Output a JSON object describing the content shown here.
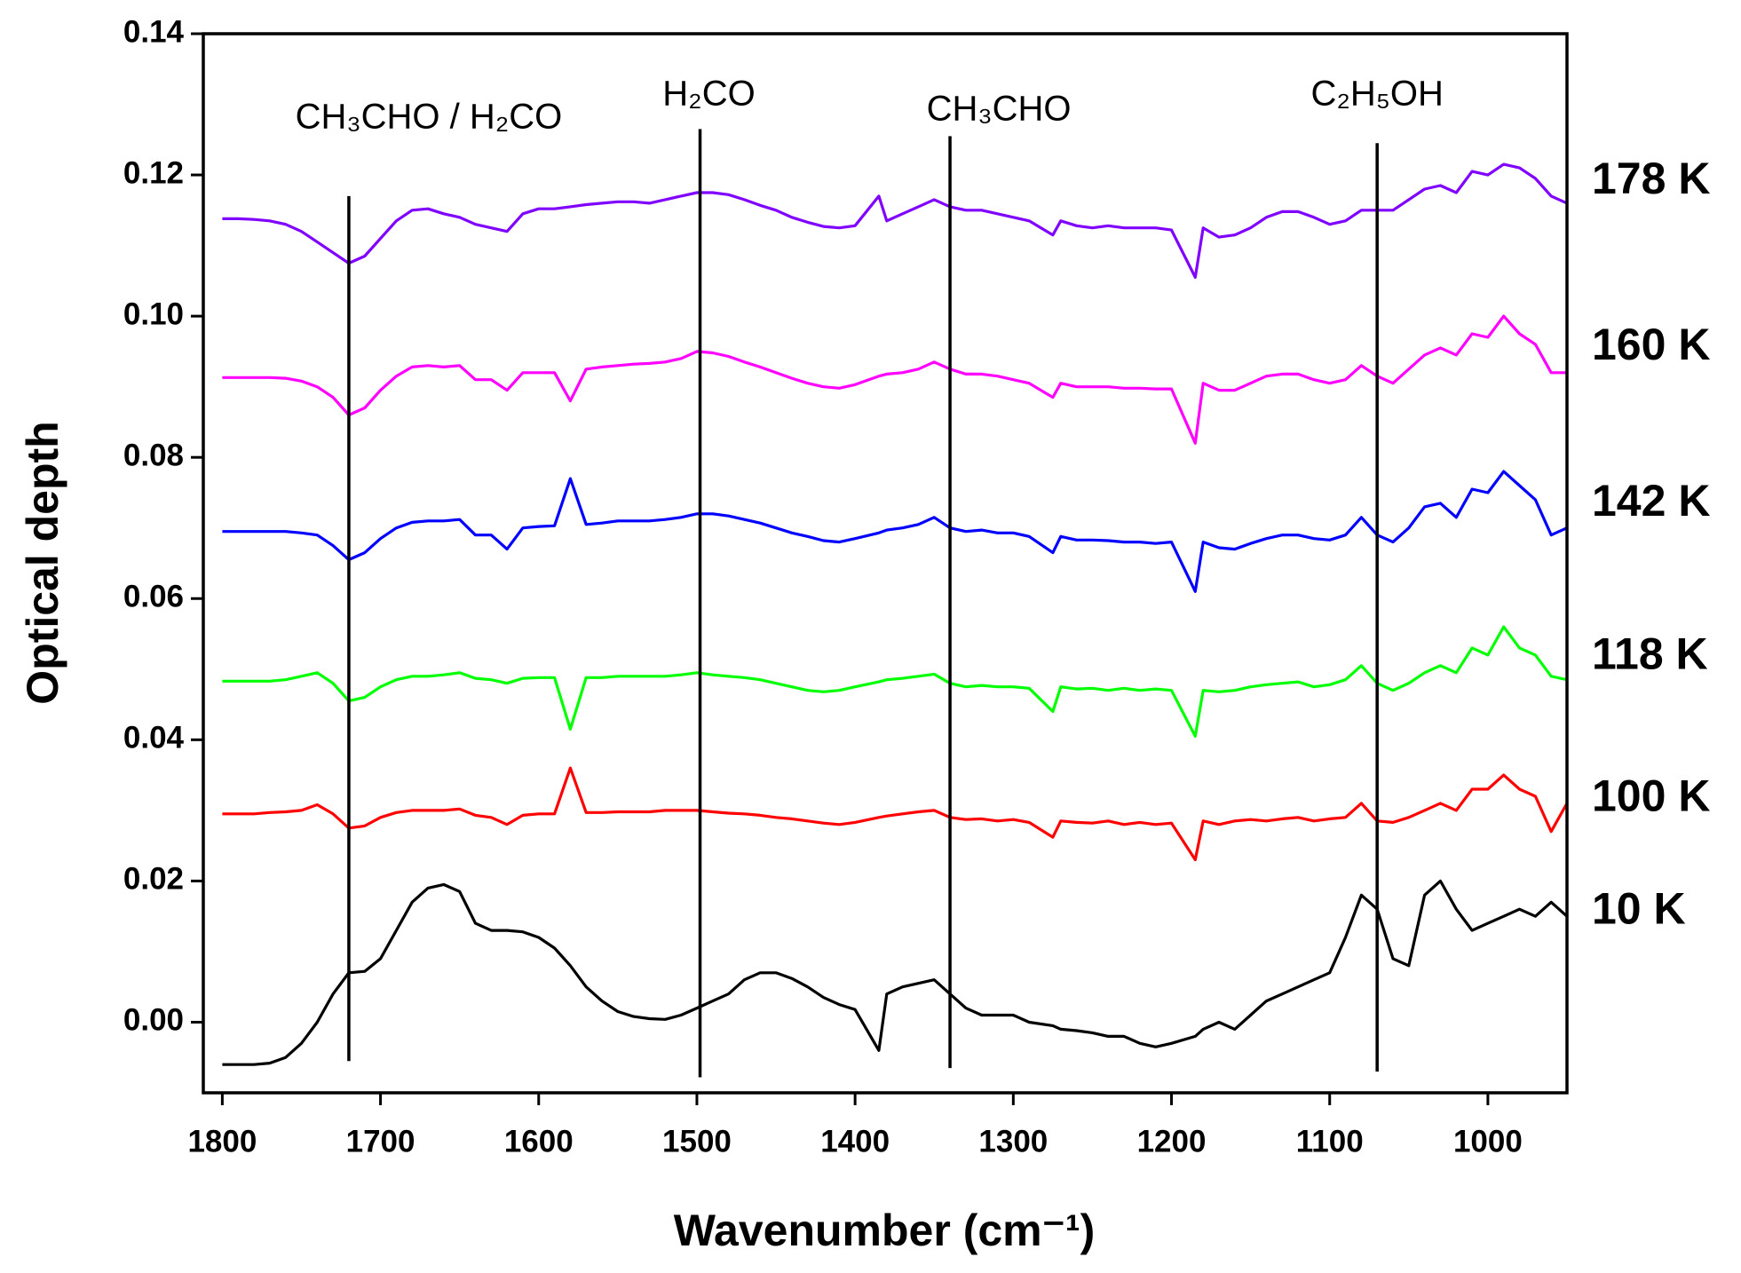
{
  "chart_data": {
    "type": "line",
    "xlabel": "Wavenumber (cm⁻¹)",
    "ylabel": "Optical depth",
    "xlim": [
      1812,
      950
    ],
    "ylim": [
      -0.01,
      0.14
    ],
    "xticks": [
      1800,
      1700,
      1600,
      1500,
      1400,
      1300,
      1200,
      1100,
      1000
    ],
    "yticks": [
      {
        "value": 0,
        "label": "0.00"
      },
      0.02,
      0.04,
      0.06,
      0.08,
      {
        "value": 0.1,
        "label": "0.10"
      },
      0.12,
      0.14
    ],
    "x": [
      1800,
      1790,
      1780,
      1770,
      1760,
      1750,
      1740,
      1730,
      1720,
      1710,
      1700,
      1690,
      1680,
      1670,
      1660,
      1650,
      1640,
      1630,
      1620,
      1610,
      1600,
      1590,
      1580,
      1570,
      1560,
      1550,
      1540,
      1530,
      1520,
      1510,
      1500,
      1490,
      1480,
      1470,
      1460,
      1450,
      1440,
      1430,
      1420,
      1410,
      1400,
      1385,
      1380,
      1370,
      1360,
      1350,
      1340,
      1330,
      1320,
      1310,
      1300,
      1290,
      1275,
      1270,
      1260,
      1250,
      1240,
      1230,
      1220,
      1210,
      1200,
      1185,
      1180,
      1170,
      1160,
      1150,
      1140,
      1130,
      1120,
      1110,
      1100,
      1090,
      1080,
      1070,
      1060,
      1050,
      1040,
      1030,
      1020,
      1010,
      1000,
      990,
      980,
      970,
      960,
      950
    ],
    "series": [
      {
        "name": "10 K",
        "color": "#000000",
        "values": [
          -0.006,
          -0.006,
          -0.006,
          -0.0058,
          -0.005,
          -0.003,
          0.0,
          0.004,
          0.007,
          0.0072,
          0.009,
          0.013,
          0.017,
          0.019,
          0.0195,
          0.0185,
          0.014,
          0.013,
          0.013,
          0.0128,
          0.012,
          0.0105,
          0.008,
          0.005,
          0.003,
          0.0015,
          0.0008,
          0.0005,
          0.0004,
          0.001,
          0.002,
          0.003,
          0.004,
          0.006,
          0.007,
          0.007,
          0.0062,
          0.005,
          0.0035,
          0.0025,
          0.0018,
          -0.004,
          0.004,
          0.005,
          0.0055,
          0.006,
          0.004,
          0.002,
          0.001,
          0.001,
          0.001,
          0.0,
          -0.0005,
          -0.001,
          -0.0012,
          -0.0015,
          -0.002,
          -0.002,
          -0.003,
          -0.0035,
          -0.003,
          -0.002,
          -0.001,
          0.0,
          -0.001,
          0.001,
          0.003,
          0.004,
          0.005,
          0.006,
          0.007,
          0.012,
          0.018,
          0.016,
          0.009,
          0.008,
          0.018,
          0.02,
          0.016,
          0.013,
          0.014,
          0.015,
          0.016,
          0.015,
          0.017,
          0.015
        ]
      },
      {
        "name": "100 K",
        "color": "#ff0000",
        "values": [
          0.0295,
          0.0295,
          0.0295,
          0.0297,
          0.0298,
          0.03,
          0.0308,
          0.0295,
          0.0275,
          0.0278,
          0.029,
          0.0297,
          0.03,
          0.03,
          0.03,
          0.0302,
          0.0293,
          0.029,
          0.028,
          0.0293,
          0.0295,
          0.0295,
          0.036,
          0.0297,
          0.0297,
          0.0298,
          0.0298,
          0.0298,
          0.03,
          0.03,
          0.03,
          0.0298,
          0.0296,
          0.0295,
          0.0293,
          0.029,
          0.0288,
          0.0285,
          0.0282,
          0.028,
          0.0283,
          0.029,
          0.0292,
          0.0295,
          0.0298,
          0.03,
          0.029,
          0.0287,
          0.0288,
          0.0285,
          0.0287,
          0.0283,
          0.0262,
          0.0285,
          0.0283,
          0.0282,
          0.0285,
          0.028,
          0.0283,
          0.028,
          0.0282,
          0.023,
          0.0285,
          0.028,
          0.0285,
          0.0287,
          0.0285,
          0.0288,
          0.029,
          0.0285,
          0.0288,
          0.029,
          0.031,
          0.0285,
          0.0283,
          0.029,
          0.03,
          0.031,
          0.03,
          0.033,
          0.033,
          0.035,
          0.033,
          0.032,
          0.027,
          0.031
        ]
      },
      {
        "name": "118 K",
        "color": "#00ff00",
        "values": [
          0.0483,
          0.0483,
          0.0483,
          0.0483,
          0.0485,
          0.049,
          0.0495,
          0.048,
          0.0455,
          0.046,
          0.0475,
          0.0485,
          0.049,
          0.049,
          0.0492,
          0.0495,
          0.0487,
          0.0485,
          0.048,
          0.0487,
          0.0488,
          0.0488,
          0.0415,
          0.0488,
          0.0488,
          0.049,
          0.049,
          0.049,
          0.049,
          0.0492,
          0.0495,
          0.0492,
          0.049,
          0.0488,
          0.0485,
          0.048,
          0.0475,
          0.047,
          0.0468,
          0.047,
          0.0475,
          0.0482,
          0.0485,
          0.0487,
          0.049,
          0.0493,
          0.048,
          0.0475,
          0.0477,
          0.0475,
          0.0475,
          0.0473,
          0.044,
          0.0475,
          0.0472,
          0.0473,
          0.047,
          0.0473,
          0.047,
          0.0472,
          0.047,
          0.0405,
          0.047,
          0.0468,
          0.047,
          0.0475,
          0.0478,
          0.048,
          0.0482,
          0.0475,
          0.0478,
          0.0485,
          0.0505,
          0.048,
          0.047,
          0.048,
          0.0495,
          0.0505,
          0.0495,
          0.053,
          0.052,
          0.056,
          0.053,
          0.052,
          0.049,
          0.0485
        ]
      },
      {
        "name": "142 K",
        "color": "#0000ff",
        "values": [
          0.0695,
          0.0695,
          0.0695,
          0.0695,
          0.0695,
          0.0693,
          0.069,
          0.0675,
          0.0655,
          0.0665,
          0.0685,
          0.07,
          0.0708,
          0.071,
          0.071,
          0.0712,
          0.069,
          0.069,
          0.067,
          0.07,
          0.0702,
          0.0703,
          0.077,
          0.0705,
          0.0707,
          0.071,
          0.071,
          0.071,
          0.0712,
          0.0715,
          0.072,
          0.072,
          0.0717,
          0.0712,
          0.0707,
          0.07,
          0.0693,
          0.0688,
          0.0682,
          0.068,
          0.0685,
          0.0693,
          0.0697,
          0.07,
          0.0705,
          0.0715,
          0.07,
          0.0695,
          0.0697,
          0.0693,
          0.0693,
          0.0688,
          0.0665,
          0.0688,
          0.0683,
          0.0683,
          0.0682,
          0.068,
          0.068,
          0.0678,
          0.068,
          0.061,
          0.068,
          0.0672,
          0.067,
          0.0678,
          0.0685,
          0.069,
          0.069,
          0.0685,
          0.0683,
          0.069,
          0.0715,
          0.069,
          0.068,
          0.07,
          0.073,
          0.0735,
          0.0715,
          0.0755,
          0.075,
          0.078,
          0.076,
          0.074,
          0.069,
          0.07
        ]
      },
      {
        "name": "160 K",
        "color": "#ff00ff",
        "values": [
          0.0913,
          0.0913,
          0.0913,
          0.0913,
          0.0912,
          0.0908,
          0.09,
          0.0885,
          0.086,
          0.087,
          0.0895,
          0.0915,
          0.0928,
          0.093,
          0.0928,
          0.093,
          0.091,
          0.091,
          0.0895,
          0.092,
          0.092,
          0.092,
          0.088,
          0.0925,
          0.0928,
          0.093,
          0.0932,
          0.0933,
          0.0935,
          0.094,
          0.095,
          0.0948,
          0.0943,
          0.0935,
          0.0928,
          0.092,
          0.0912,
          0.0905,
          0.09,
          0.0898,
          0.0903,
          0.0915,
          0.0918,
          0.092,
          0.0925,
          0.0935,
          0.0925,
          0.0918,
          0.0918,
          0.0915,
          0.091,
          0.0905,
          0.0885,
          0.0905,
          0.09,
          0.09,
          0.09,
          0.0898,
          0.0898,
          0.0897,
          0.0897,
          0.082,
          0.0905,
          0.0895,
          0.0895,
          0.0905,
          0.0915,
          0.0918,
          0.0918,
          0.091,
          0.0905,
          0.091,
          0.093,
          0.0915,
          0.0905,
          0.0925,
          0.0945,
          0.0955,
          0.0945,
          0.0975,
          0.097,
          0.1,
          0.0975,
          0.096,
          0.092,
          0.092
        ]
      },
      {
        "name": "178 K",
        "color": "#8000ff",
        "values": [
          0.1138,
          0.1138,
          0.1137,
          0.1135,
          0.113,
          0.112,
          0.1105,
          0.109,
          0.1075,
          0.1085,
          0.111,
          0.1135,
          0.115,
          0.1152,
          0.1145,
          0.114,
          0.113,
          0.1125,
          0.112,
          0.1145,
          0.1152,
          0.1152,
          0.1155,
          0.1158,
          0.116,
          0.1162,
          0.1162,
          0.116,
          0.1165,
          0.117,
          0.1175,
          0.1175,
          0.1172,
          0.1165,
          0.1157,
          0.115,
          0.114,
          0.1133,
          0.1127,
          0.1125,
          0.1128,
          0.117,
          0.1135,
          0.1145,
          0.1155,
          0.1165,
          0.1155,
          0.115,
          0.115,
          0.1145,
          0.114,
          0.1135,
          0.1115,
          0.1135,
          0.1128,
          0.1125,
          0.1128,
          0.1125,
          0.1125,
          0.1125,
          0.1122,
          0.1055,
          0.1125,
          0.1112,
          0.1115,
          0.1125,
          0.114,
          0.1148,
          0.1148,
          0.114,
          0.113,
          0.1135,
          0.115,
          0.115,
          0.115,
          0.1165,
          0.118,
          0.1185,
          0.1175,
          0.1205,
          0.12,
          0.1215,
          0.121,
          0.1195,
          0.117,
          0.116
        ]
      }
    ],
    "annotations": [
      {
        "label": "CH₃CHO / H₂CO",
        "x": 1720,
        "y": [
          0.117,
          -0.0055
        ]
      },
      {
        "label": "H₂CO",
        "x": 1498,
        "y": [
          0.1265,
          -0.0078
        ]
      },
      {
        "label": "CH₃CHO",
        "x": 1340,
        "y": [
          0.1255,
          -0.0065
        ]
      },
      {
        "label": "C₂H₅OH",
        "x": 1070,
        "y": [
          0.1245,
          -0.007
        ]
      }
    ]
  }
}
